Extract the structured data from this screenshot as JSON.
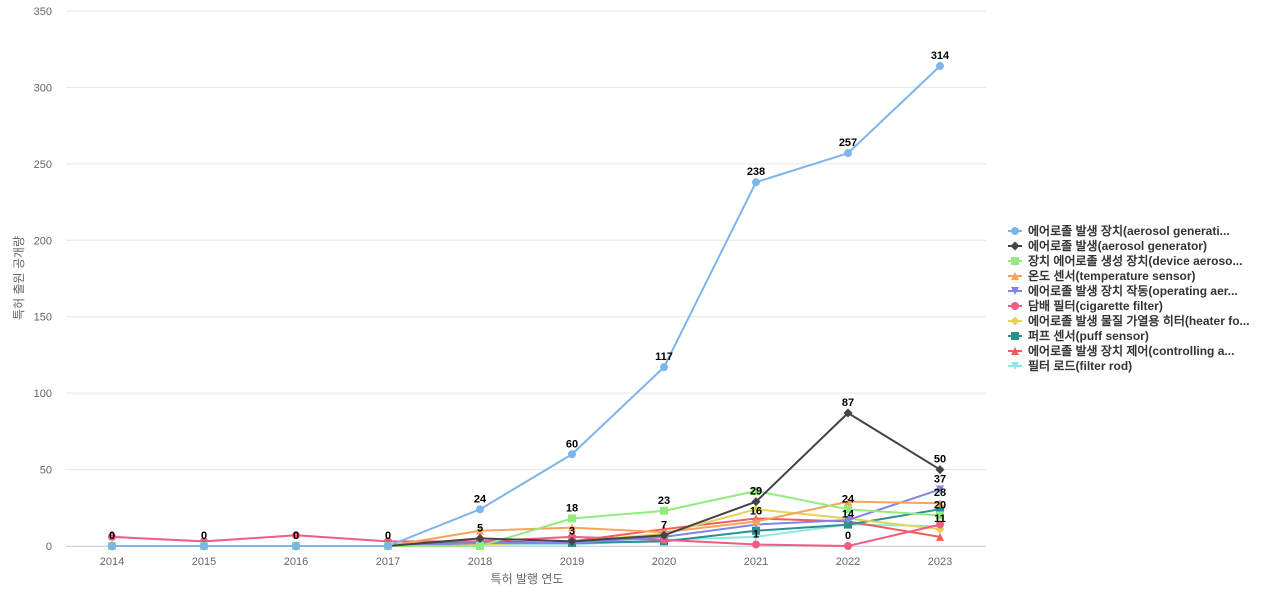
{
  "chart_data": {
    "type": "line",
    "title": "",
    "xlabel": "특허 발행 연도",
    "ylabel": "특허 출원 공개량",
    "ylim": [
      0,
      350
    ],
    "yticks": [
      0,
      50,
      100,
      150,
      200,
      250,
      300,
      350
    ],
    "grid": true,
    "legend_position": "right",
    "categories": [
      "2014",
      "2015",
      "2016",
      "2017",
      "2018",
      "2019",
      "2020",
      "2021",
      "2022",
      "2023"
    ],
    "series": [
      {
        "name": "에어로졸 발생 장치(aerosol generati...",
        "color": "#7cb5ec",
        "marker": "circle",
        "values": [
          0,
          0,
          0,
          0,
          24,
          60,
          117,
          238,
          257,
          314
        ]
      },
      {
        "name": "에어로졸 발생(aerosol generator)",
        "color": "#434348",
        "marker": "diamond",
        "values": [
          0,
          0,
          0,
          0,
          5,
          3,
          7,
          29,
          87,
          50
        ]
      },
      {
        "name": "장치 에어로졸 생성 장치(device aeroso...",
        "color": "#90ed7d",
        "marker": "square",
        "values": [
          0,
          0,
          0,
          0,
          0,
          18,
          23,
          36,
          24,
          20
        ]
      },
      {
        "name": "온도 센서(temperature sensor)",
        "color": "#f7a35c",
        "marker": "triangle",
        "values": [
          0,
          0,
          0,
          0,
          10,
          12,
          9,
          16,
          29,
          28
        ]
      },
      {
        "name": "에어로졸 발생 장치 작동(operating aer...",
        "color": "#8085e9",
        "marker": "triangle-down",
        "values": [
          0,
          0,
          0,
          0,
          2,
          2,
          6,
          14,
          17,
          37
        ]
      },
      {
        "name": "담배 필터(cigarette filter)",
        "color": "#f15c80",
        "marker": "circle",
        "values": [
          6,
          3,
          7,
          3,
          3,
          6,
          4,
          1,
          0,
          14
        ]
      },
      {
        "name": "에어로졸 발생 물질 가열용 히터(heater fo...",
        "color": "#e4d354",
        "marker": "diamond",
        "values": [
          0,
          0,
          0,
          0,
          1,
          3,
          8,
          24,
          18,
          11
        ]
      },
      {
        "name": "퍼프 센서(puff sensor)",
        "color": "#2b908f",
        "marker": "square",
        "values": [
          0,
          0,
          0,
          0,
          3,
          2,
          3,
          10,
          14,
          24
        ]
      },
      {
        "name": "에어로졸 발생 장치 제어(controlling a...",
        "color": "#f45b5b",
        "marker": "triangle",
        "values": [
          0,
          0,
          0,
          0,
          2,
          3,
          11,
          18,
          16,
          6
        ]
      },
      {
        "name": "필터 로드(filter rod)",
        "color": "#91e8e1",
        "marker": "triangle-down",
        "values": [
          0,
          0,
          0,
          0,
          1,
          1,
          4,
          6,
          14,
          13
        ]
      }
    ],
    "data_labels": [
      {
        "category": "2014",
        "value": 0,
        "text": "0"
      },
      {
        "category": "2015",
        "value": 0,
        "text": "0"
      },
      {
        "category": "2016",
        "value": 0,
        "text": "0"
      },
      {
        "category": "2017",
        "value": 0,
        "text": "0"
      },
      {
        "category": "2018",
        "value": 24,
        "text": "24"
      },
      {
        "category": "2018",
        "value": 5,
        "text": "5"
      },
      {
        "category": "2019",
        "value": 60,
        "text": "60"
      },
      {
        "category": "2019",
        "value": 18,
        "text": "18"
      },
      {
        "category": "2019",
        "value": 3,
        "text": "3"
      },
      {
        "category": "2020",
        "value": 117,
        "text": "117"
      },
      {
        "category": "2020",
        "value": 23,
        "text": "23"
      },
      {
        "category": "2020",
        "value": 7,
        "text": "7"
      },
      {
        "category": "2021",
        "value": 238,
        "text": "238"
      },
      {
        "category": "2021",
        "value": 29,
        "text": "29"
      },
      {
        "category": "2021",
        "value": 16,
        "text": "16"
      },
      {
        "category": "2021",
        "value": 1,
        "text": "1"
      },
      {
        "category": "2022",
        "value": 257,
        "text": "257"
      },
      {
        "category": "2022",
        "value": 87,
        "text": "87"
      },
      {
        "category": "2022",
        "value": 24,
        "text": "24"
      },
      {
        "category": "2022",
        "value": 14,
        "text": "14"
      },
      {
        "category": "2022",
        "value": 0,
        "text": "0"
      },
      {
        "category": "2023",
        "value": 314,
        "text": "314"
      },
      {
        "category": "2023",
        "value": 50,
        "text": "50"
      },
      {
        "category": "2023",
        "value": 37,
        "text": "37"
      },
      {
        "category": "2023",
        "value": 28,
        "text": "28"
      },
      {
        "category": "2023",
        "value": 20,
        "text": "20"
      },
      {
        "category": "2023",
        "value": 11,
        "text": "11"
      }
    ]
  }
}
